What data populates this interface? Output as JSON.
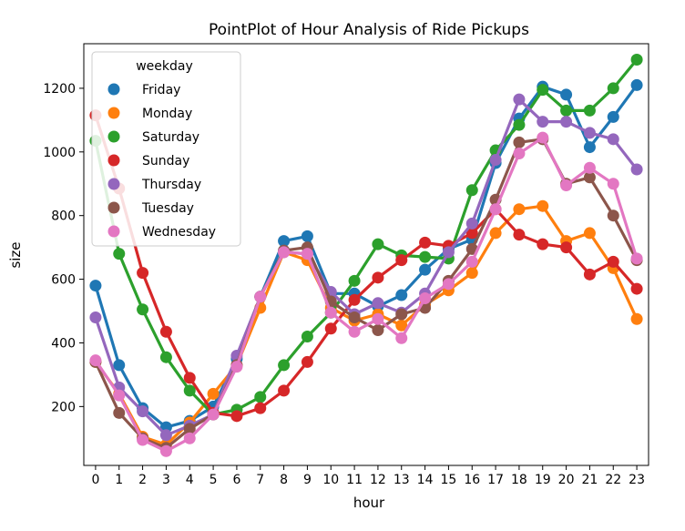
{
  "chart_data": {
    "type": "line",
    "title": "PointPlot of Hour Analysis of Ride Pickups",
    "xlabel": "hour",
    "ylabel": "size",
    "x": [
      0,
      1,
      2,
      3,
      4,
      5,
      6,
      7,
      8,
      9,
      10,
      11,
      12,
      13,
      14,
      15,
      16,
      17,
      18,
      19,
      20,
      21,
      22,
      23
    ],
    "ylim": [
      15,
      1340
    ],
    "yticks": [
      200,
      400,
      600,
      800,
      1000,
      1200
    ],
    "grid": false,
    "legend": {
      "title": "weekday",
      "placement": "upper-left"
    },
    "series": [
      {
        "name": "Friday",
        "color": "#1f77b4",
        "values": [
          580,
          330,
          195,
          135,
          155,
          200,
          350,
          545,
          720,
          735,
          555,
          555,
          515,
          550,
          630,
          695,
          725,
          965,
          1105,
          1205,
          1180,
          1015,
          1110,
          1210
        ]
      },
      {
        "name": "Monday",
        "color": "#ff7f0e",
        "values": [
          340,
          240,
          105,
          80,
          150,
          240,
          330,
          510,
          685,
          660,
          510,
          470,
          490,
          455,
          520,
          565,
          620,
          745,
          820,
          830,
          720,
          745,
          635,
          475
        ]
      },
      {
        "name": "Saturday",
        "color": "#2ca02c",
        "values": [
          1035,
          680,
          505,
          355,
          250,
          175,
          190,
          230,
          330,
          420,
          495,
          595,
          710,
          675,
          670,
          665,
          880,
          1005,
          1085,
          1195,
          1130,
          1130,
          1200,
          1290
        ]
      },
      {
        "name": "Sunday",
        "color": "#d62728",
        "values": [
          1115,
          885,
          620,
          435,
          290,
          180,
          170,
          195,
          250,
          340,
          445,
          535,
          605,
          660,
          715,
          705,
          745,
          820,
          740,
          710,
          700,
          615,
          655,
          570
        ]
      },
      {
        "name": "Thursday",
        "color": "#9467bd",
        "values": [
          480,
          260,
          185,
          110,
          140,
          175,
          360,
          545,
          685,
          680,
          560,
          490,
          525,
          495,
          555,
          685,
          775,
          975,
          1165,
          1095,
          1095,
          1060,
          1040,
          945
        ]
      },
      {
        "name": "Tuesday",
        "color": "#8c564b",
        "values": [
          340,
          180,
          100,
          70,
          130,
          175,
          330,
          545,
          690,
          700,
          530,
          480,
          440,
          490,
          510,
          595,
          695,
          850,
          1030,
          1040,
          900,
          920,
          800,
          660
        ]
      },
      {
        "name": "Wednesday",
        "color": "#e377c2",
        "values": [
          345,
          235,
          95,
          60,
          100,
          175,
          325,
          545,
          685,
          680,
          495,
          435,
          475,
          415,
          540,
          585,
          655,
          820,
          995,
          1045,
          895,
          950,
          900,
          665
        ]
      }
    ]
  }
}
